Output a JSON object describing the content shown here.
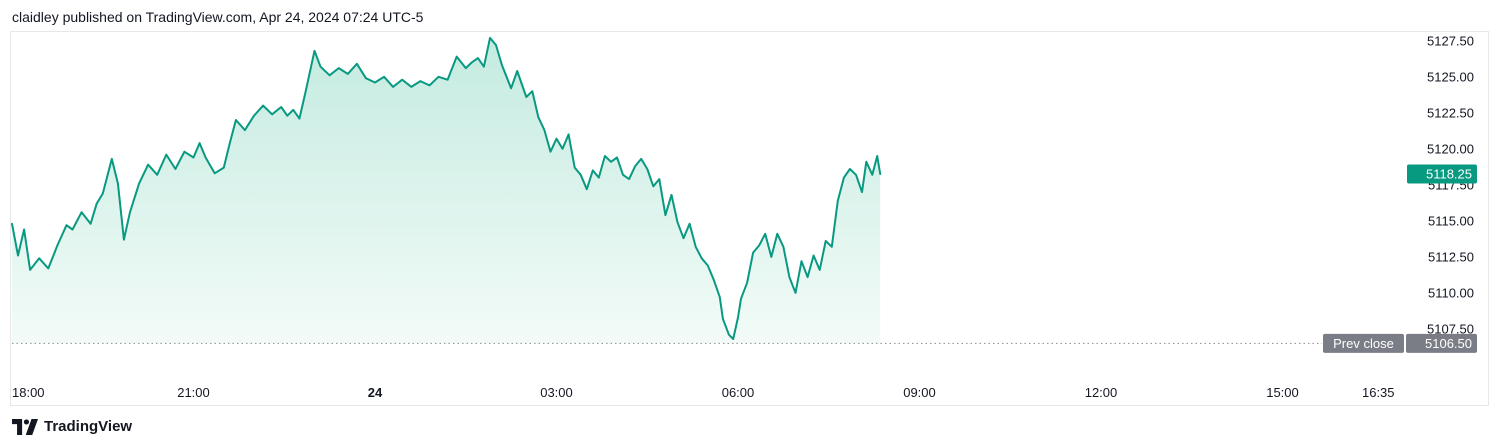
{
  "header": {
    "text": "claidley published on TradingView.com, Apr 24, 2024 07:24 UTC-5"
  },
  "footer": {
    "brand": "TradingView",
    "logo_icon": "tradingview-logo-icon"
  },
  "colors": {
    "line": "#089981",
    "fill_top": "#c4ebe0",
    "fill_bottom": "#f3fbf8",
    "last_price_tag": "#089981",
    "prev_close_tag": "#7a7d85",
    "prev_close_line": "#8a8d95",
    "border": "#e6e8ec"
  },
  "chart_data": {
    "type": "area",
    "title": "",
    "xlabel": "",
    "ylabel": "",
    "ylim": [
      5105.9,
      5127.9
    ],
    "x_range_hours": [
      -6.0,
      16.75
    ],
    "x_ticks": [
      {
        "label": "18:00",
        "h": -6.0,
        "bold": false
      },
      {
        "label": "21:00",
        "h": -3.0,
        "bold": false
      },
      {
        "label": "24",
        "h": 0.0,
        "bold": true
      },
      {
        "label": "03:00",
        "h": 3.0,
        "bold": false
      },
      {
        "label": "06:00",
        "h": 6.0,
        "bold": false
      },
      {
        "label": "09:00",
        "h": 9.0,
        "bold": false
      },
      {
        "label": "12:00",
        "h": 12.0,
        "bold": false
      },
      {
        "label": "15:00",
        "h": 15.0,
        "bold": false
      },
      {
        "label": "16:35",
        "h": 16.583,
        "bold": false
      }
    ],
    "y_ticks": [
      "5107.50",
      "5110.00",
      "5112.50",
      "5115.00",
      "5117.50",
      "5120.00",
      "5122.50",
      "5125.00",
      "5127.50"
    ],
    "last_price": {
      "value": 5118.25,
      "label": "5118.25"
    },
    "prev_close": {
      "value": 5106.5,
      "label": "5106.50",
      "caption": "Prev close"
    },
    "grid": false,
    "series": [
      {
        "points": [
          [
            -6.0,
            5114.8
          ],
          [
            -5.9,
            5112.6
          ],
          [
            -5.8,
            5114.4
          ],
          [
            -5.7,
            5111.6
          ],
          [
            -5.55,
            5112.4
          ],
          [
            -5.4,
            5111.7
          ],
          [
            -5.25,
            5113.3
          ],
          [
            -5.1,
            5114.7
          ],
          [
            -5.0,
            5114.4
          ],
          [
            -4.85,
            5115.6
          ],
          [
            -4.7,
            5114.8
          ],
          [
            -4.6,
            5116.2
          ],
          [
            -4.5,
            5116.9
          ],
          [
            -4.35,
            5119.3
          ],
          [
            -4.25,
            5117.6
          ],
          [
            -4.15,
            5113.7
          ],
          [
            -4.05,
            5115.6
          ],
          [
            -3.9,
            5117.6
          ],
          [
            -3.75,
            5118.9
          ],
          [
            -3.6,
            5118.2
          ],
          [
            -3.45,
            5119.6
          ],
          [
            -3.3,
            5118.6
          ],
          [
            -3.15,
            5119.8
          ],
          [
            -3.0,
            5119.4
          ],
          [
            -2.9,
            5120.4
          ],
          [
            -2.8,
            5119.4
          ],
          [
            -2.65,
            5118.3
          ],
          [
            -2.5,
            5118.7
          ],
          [
            -2.4,
            5120.4
          ],
          [
            -2.3,
            5122.0
          ],
          [
            -2.15,
            5121.3
          ],
          [
            -2.0,
            5122.3
          ],
          [
            -1.85,
            5123.0
          ],
          [
            -1.7,
            5122.4
          ],
          [
            -1.55,
            5122.9
          ],
          [
            -1.45,
            5122.3
          ],
          [
            -1.35,
            5122.7
          ],
          [
            -1.25,
            5122.1
          ],
          [
            -1.15,
            5123.9
          ],
          [
            -1.0,
            5126.8
          ],
          [
            -0.9,
            5125.7
          ],
          [
            -0.75,
            5125.1
          ],
          [
            -0.6,
            5125.6
          ],
          [
            -0.45,
            5125.2
          ],
          [
            -0.3,
            5125.9
          ],
          [
            -0.15,
            5124.9
          ],
          [
            0.0,
            5124.6
          ],
          [
            0.15,
            5125.0
          ],
          [
            0.3,
            5124.3
          ],
          [
            0.45,
            5124.8
          ],
          [
            0.6,
            5124.3
          ],
          [
            0.75,
            5124.7
          ],
          [
            0.9,
            5124.4
          ],
          [
            1.05,
            5125.0
          ],
          [
            1.2,
            5124.8
          ],
          [
            1.35,
            5126.4
          ],
          [
            1.5,
            5125.6
          ],
          [
            1.6,
            5126.0
          ],
          [
            1.7,
            5126.3
          ],
          [
            1.8,
            5125.7
          ],
          [
            1.9,
            5127.7
          ],
          [
            2.0,
            5127.2
          ],
          [
            2.1,
            5125.8
          ],
          [
            2.25,
            5124.2
          ],
          [
            2.35,
            5125.4
          ],
          [
            2.5,
            5123.6
          ],
          [
            2.6,
            5124.0
          ],
          [
            2.7,
            5122.2
          ],
          [
            2.8,
            5121.3
          ],
          [
            2.9,
            5119.8
          ],
          [
            3.0,
            5120.7
          ],
          [
            3.1,
            5120.0
          ],
          [
            3.2,
            5121.0
          ],
          [
            3.3,
            5118.7
          ],
          [
            3.4,
            5118.2
          ],
          [
            3.5,
            5117.2
          ],
          [
            3.6,
            5118.5
          ],
          [
            3.7,
            5118.0
          ],
          [
            3.8,
            5119.5
          ],
          [
            3.9,
            5119.1
          ],
          [
            4.0,
            5119.4
          ],
          [
            4.1,
            5118.2
          ],
          [
            4.2,
            5117.9
          ],
          [
            4.3,
            5118.8
          ],
          [
            4.4,
            5119.3
          ],
          [
            4.5,
            5118.6
          ],
          [
            4.6,
            5117.4
          ],
          [
            4.7,
            5117.9
          ],
          [
            4.8,
            5115.4
          ],
          [
            4.9,
            5116.8
          ],
          [
            5.0,
            5114.9
          ],
          [
            5.1,
            5113.8
          ],
          [
            5.2,
            5114.8
          ],
          [
            5.3,
            5113.2
          ],
          [
            5.4,
            5112.4
          ],
          [
            5.5,
            5111.9
          ],
          [
            5.6,
            5110.9
          ],
          [
            5.7,
            5109.7
          ],
          [
            5.75,
            5108.2
          ],
          [
            5.85,
            5107.1
          ],
          [
            5.92,
            5106.8
          ],
          [
            6.0,
            5108.3
          ],
          [
            6.05,
            5109.6
          ],
          [
            6.15,
            5110.7
          ],
          [
            6.25,
            5112.8
          ],
          [
            6.35,
            5113.3
          ],
          [
            6.45,
            5114.1
          ],
          [
            6.55,
            5112.5
          ],
          [
            6.65,
            5114.1
          ],
          [
            6.75,
            5113.2
          ],
          [
            6.85,
            5111.1
          ],
          [
            6.95,
            5110.0
          ],
          [
            7.05,
            5112.2
          ],
          [
            7.15,
            5111.1
          ],
          [
            7.25,
            5112.6
          ],
          [
            7.35,
            5111.6
          ],
          [
            7.45,
            5113.6
          ],
          [
            7.55,
            5113.2
          ],
          [
            7.65,
            5116.4
          ],
          [
            7.75,
            5118.0
          ],
          [
            7.85,
            5118.6
          ],
          [
            7.95,
            5118.2
          ],
          [
            8.05,
            5117.0
          ],
          [
            8.12,
            5119.1
          ],
          [
            8.22,
            5118.2
          ],
          [
            8.3,
            5119.5
          ],
          [
            8.35,
            5118.25
          ]
        ]
      }
    ]
  }
}
